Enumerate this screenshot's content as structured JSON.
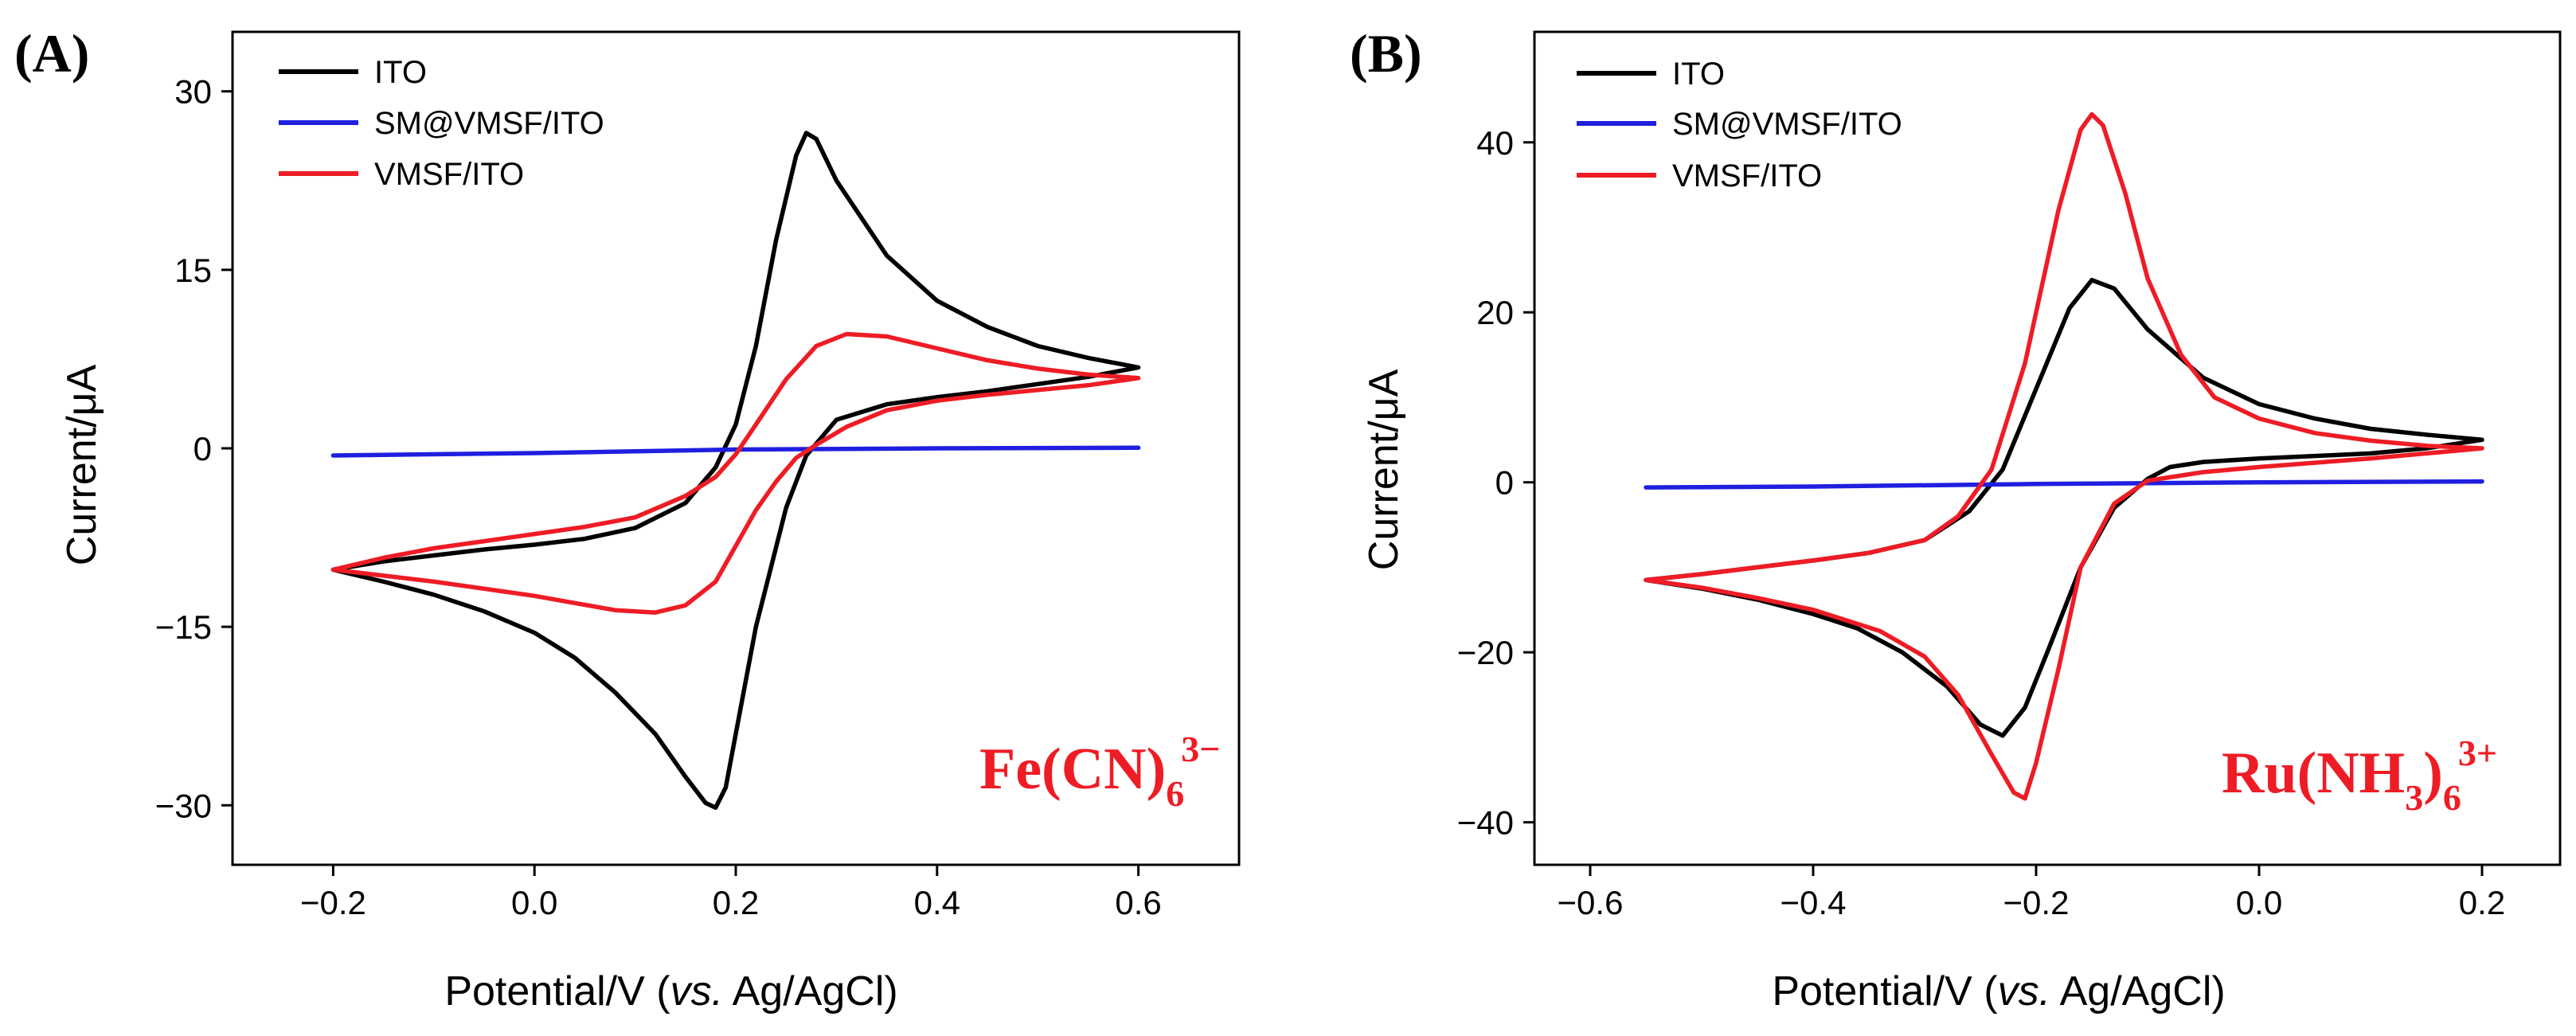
{
  "chart_data": [
    {
      "panel_label": "(A)",
      "type": "line",
      "xlabel": "Potential/V (vs. Ag/AgCl)",
      "ylabel": "Current/μA",
      "xlim": [
        -0.3,
        0.7
      ],
      "ylim": [
        -35,
        35
      ],
      "xticks": [
        -0.2,
        0.0,
        0.2,
        0.4,
        0.6
      ],
      "xtick_labels": [
        "−0.2",
        "0.0",
        "0.2",
        "0.4",
        "0.6"
      ],
      "yticks": [
        30,
        15,
        0,
        -15,
        -30
      ],
      "ytick_labels": [
        "30",
        "15",
        "0",
        "−15",
        "−30"
      ],
      "legend": [
        "ITO",
        "SM@VMSF/ITO",
        "VMSF/ITO"
      ],
      "legend_position": "top-left",
      "annotation": {
        "text": "Fe(CN)",
        "sub": "6",
        "sup": "3−",
        "color": "#ee1c25"
      },
      "series": [
        {
          "name": "ITO",
          "color": "#000000",
          "points": [
            [
              -0.2,
              -10.2
            ],
            [
              -0.15,
              -9.5
            ],
            [
              -0.1,
              -9.0
            ],
            [
              -0.05,
              -8.5
            ],
            [
              0.0,
              -8.1
            ],
            [
              0.05,
              -7.6
            ],
            [
              0.1,
              -6.7
            ],
            [
              0.15,
              -4.6
            ],
            [
              0.18,
              -1.6
            ],
            [
              0.2,
              2.0
            ],
            [
              0.22,
              8.6
            ],
            [
              0.24,
              17.5
            ],
            [
              0.26,
              24.6
            ],
            [
              0.27,
              26.5
            ],
            [
              0.28,
              26.0
            ],
            [
              0.3,
              22.5
            ],
            [
              0.35,
              16.2
            ],
            [
              0.4,
              12.4
            ],
            [
              0.45,
              10.2
            ],
            [
              0.5,
              8.6
            ],
            [
              0.55,
              7.6
            ],
            [
              0.6,
              6.8
            ],
            [
              0.55,
              6.0
            ],
            [
              0.5,
              5.4
            ],
            [
              0.45,
              4.8
            ],
            [
              0.4,
              4.3
            ],
            [
              0.35,
              3.7
            ],
            [
              0.3,
              2.4
            ],
            [
              0.27,
              -0.6
            ],
            [
              0.25,
              -5.0
            ],
            [
              0.22,
              -15.0
            ],
            [
              0.2,
              -24.0
            ],
            [
              0.19,
              -28.5
            ],
            [
              0.18,
              -30.2
            ],
            [
              0.17,
              -29.8
            ],
            [
              0.15,
              -27.6
            ],
            [
              0.12,
              -24.0
            ],
            [
              0.08,
              -20.5
            ],
            [
              0.04,
              -17.6
            ],
            [
              0.0,
              -15.5
            ],
            [
              -0.05,
              -13.7
            ],
            [
              -0.1,
              -12.3
            ],
            [
              -0.15,
              -11.2
            ],
            [
              -0.2,
              -10.2
            ]
          ]
        },
        {
          "name": "SM@VMSF/ITO",
          "color": "#1f1fe0",
          "points": [
            [
              -0.2,
              -0.6
            ],
            [
              0.0,
              -0.4
            ],
            [
              0.2,
              -0.1
            ],
            [
              0.4,
              0.0
            ],
            [
              0.6,
              0.05
            ]
          ]
        },
        {
          "name": "VMSF/ITO",
          "color": "#ee1c25",
          "points": [
            [
              -0.2,
              -10.2
            ],
            [
              -0.15,
              -9.2
            ],
            [
              -0.1,
              -8.4
            ],
            [
              -0.05,
              -7.8
            ],
            [
              0.0,
              -7.2
            ],
            [
              0.05,
              -6.6
            ],
            [
              0.1,
              -5.8
            ],
            [
              0.15,
              -4.0
            ],
            [
              0.18,
              -2.4
            ],
            [
              0.2,
              -0.5
            ],
            [
              0.22,
              2.0
            ],
            [
              0.25,
              5.8
            ],
            [
              0.28,
              8.6
            ],
            [
              0.31,
              9.6
            ],
            [
              0.35,
              9.4
            ],
            [
              0.4,
              8.4
            ],
            [
              0.45,
              7.4
            ],
            [
              0.5,
              6.7
            ],
            [
              0.55,
              6.2
            ],
            [
              0.6,
              5.9
            ],
            [
              0.55,
              5.3
            ],
            [
              0.5,
              4.9
            ],
            [
              0.45,
              4.5
            ],
            [
              0.4,
              4.0
            ],
            [
              0.35,
              3.2
            ],
            [
              0.31,
              1.8
            ],
            [
              0.28,
              0.3
            ],
            [
              0.26,
              -0.8
            ],
            [
              0.24,
              -2.8
            ],
            [
              0.22,
              -5.2
            ],
            [
              0.2,
              -8.2
            ],
            [
              0.18,
              -11.2
            ],
            [
              0.15,
              -13.2
            ],
            [
              0.12,
              -13.8
            ],
            [
              0.08,
              -13.6
            ],
            [
              0.04,
              -13.0
            ],
            [
              0.0,
              -12.4
            ],
            [
              -0.05,
              -11.8
            ],
            [
              -0.1,
              -11.2
            ],
            [
              -0.15,
              -10.7
            ],
            [
              -0.2,
              -10.2
            ]
          ]
        }
      ]
    },
    {
      "panel_label": "(B)",
      "type": "line",
      "xlabel": "Potential/V (vs. Ag/AgCl)",
      "ylabel": "Current/μA",
      "xlim": [
        -0.65,
        0.27
      ],
      "ylim": [
        -45,
        53
      ],
      "xticks": [
        -0.6,
        -0.4,
        -0.2,
        0.0,
        0.2
      ],
      "xtick_labels": [
        "−0.6",
        "−0.4",
        "−0.2",
        "0.0",
        "0.2"
      ],
      "yticks": [
        40,
        20,
        0,
        -20,
        -40
      ],
      "ytick_labels": [
        "40",
        "20",
        "0",
        "−20",
        "−40"
      ],
      "legend": [
        "ITO",
        "SM@VMSF/ITO",
        "VMSF/ITO"
      ],
      "legend_position": "top-left",
      "annotation": {
        "text": "Ru(NH",
        "sub1": "3",
        "text2": ")",
        "sub": "6",
        "sup": "3+",
        "color": "#ee1c25"
      },
      "series": [
        {
          "name": "ITO",
          "color": "#000000",
          "points": [
            [
              -0.55,
              -11.5
            ],
            [
              -0.5,
              -10.8
            ],
            [
              -0.45,
              -10.0
            ],
            [
              -0.4,
              -9.2
            ],
            [
              -0.35,
              -8.3
            ],
            [
              -0.3,
              -6.8
            ],
            [
              -0.26,
              -3.4
            ],
            [
              -0.23,
              1.5
            ],
            [
              -0.2,
              11.0
            ],
            [
              -0.17,
              20.5
            ],
            [
              -0.15,
              23.8
            ],
            [
              -0.13,
              22.8
            ],
            [
              -0.1,
              18.0
            ],
            [
              -0.05,
              12.3
            ],
            [
              0.0,
              9.2
            ],
            [
              0.05,
              7.5
            ],
            [
              0.1,
              6.3
            ],
            [
              0.15,
              5.6
            ],
            [
              0.2,
              5.0
            ],
            [
              0.15,
              4.0
            ],
            [
              0.1,
              3.4
            ],
            [
              0.05,
              3.1
            ],
            [
              0.0,
              2.8
            ],
            [
              -0.05,
              2.4
            ],
            [
              -0.08,
              1.8
            ],
            [
              -0.1,
              0.4
            ],
            [
              -0.13,
              -3.0
            ],
            [
              -0.16,
              -10.0
            ],
            [
              -0.19,
              -20.0
            ],
            [
              -0.21,
              -26.5
            ],
            [
              -0.23,
              -29.8
            ],
            [
              -0.25,
              -28.5
            ],
            [
              -0.28,
              -24.0
            ],
            [
              -0.32,
              -20.0
            ],
            [
              -0.36,
              -17.2
            ],
            [
              -0.4,
              -15.5
            ],
            [
              -0.45,
              -13.8
            ],
            [
              -0.5,
              -12.5
            ],
            [
              -0.55,
              -11.5
            ]
          ]
        },
        {
          "name": "SM@VMSF/ITO",
          "color": "#1f1fe0",
          "points": [
            [
              -0.55,
              -0.6
            ],
            [
              -0.4,
              -0.5
            ],
            [
              -0.2,
              -0.2
            ],
            [
              0.0,
              0.0
            ],
            [
              0.2,
              0.1
            ]
          ]
        },
        {
          "name": "VMSF/ITO",
          "color": "#ee1c25",
          "points": [
            [
              -0.55,
              -11.5
            ],
            [
              -0.5,
              -10.8
            ],
            [
              -0.45,
              -10.0
            ],
            [
              -0.4,
              -9.2
            ],
            [
              -0.35,
              -8.3
            ],
            [
              -0.3,
              -6.8
            ],
            [
              -0.27,
              -4.0
            ],
            [
              -0.24,
              1.5
            ],
            [
              -0.21,
              14.0
            ],
            [
              -0.18,
              32.0
            ],
            [
              -0.16,
              41.5
            ],
            [
              -0.15,
              43.3
            ],
            [
              -0.14,
              42.0
            ],
            [
              -0.12,
              34.0
            ],
            [
              -0.1,
              24.0
            ],
            [
              -0.07,
              15.0
            ],
            [
              -0.04,
              10.0
            ],
            [
              0.0,
              7.5
            ],
            [
              0.05,
              5.8
            ],
            [
              0.1,
              4.9
            ],
            [
              0.15,
              4.3
            ],
            [
              0.2,
              4.0
            ],
            [
              0.15,
              3.4
            ],
            [
              0.1,
              2.8
            ],
            [
              0.05,
              2.3
            ],
            [
              0.0,
              1.8
            ],
            [
              -0.05,
              1.2
            ],
            [
              -0.1,
              0.2
            ],
            [
              -0.13,
              -2.5
            ],
            [
              -0.16,
              -10.0
            ],
            [
              -0.18,
              -22.0
            ],
            [
              -0.2,
              -33.0
            ],
            [
              -0.21,
              -37.2
            ],
            [
              -0.22,
              -36.5
            ],
            [
              -0.24,
              -32.0
            ],
            [
              -0.27,
              -25.0
            ],
            [
              -0.3,
              -20.5
            ],
            [
              -0.34,
              -17.5
            ],
            [
              -0.4,
              -15.0
            ],
            [
              -0.45,
              -13.6
            ],
            [
              -0.5,
              -12.4
            ],
            [
              -0.55,
              -11.5
            ]
          ]
        }
      ]
    }
  ]
}
